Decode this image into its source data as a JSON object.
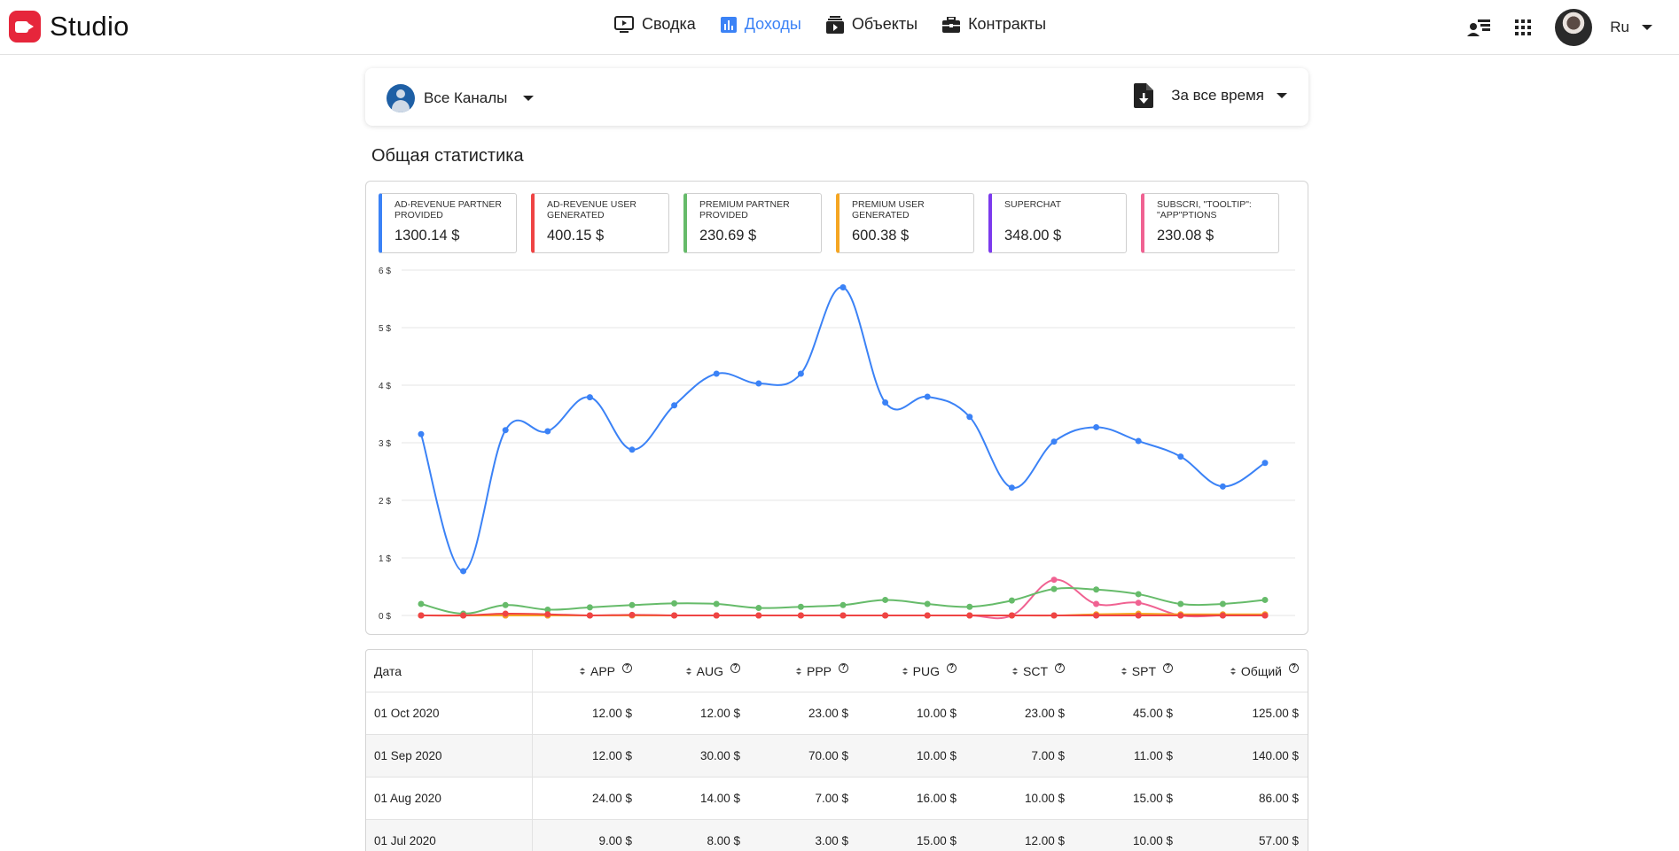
{
  "header": {
    "logo_text": "Studio",
    "nav": [
      {
        "label": "Сводка",
        "icon": "tv-play-icon",
        "active": false
      },
      {
        "label": "Доходы",
        "icon": "bar-chart-icon",
        "active": true
      },
      {
        "label": "Объекты",
        "icon": "media-stack-icon",
        "active": false
      },
      {
        "label": "Контракты",
        "icon": "briefcase-icon",
        "active": false
      }
    ],
    "lang": "Ru"
  },
  "filters": {
    "channel": "Все Каналы",
    "period": "За все время"
  },
  "section_title": "Общая статистика",
  "cards": [
    {
      "label": "AD-REVENUE PARTNER PROVIDED",
      "value": "1300.14 $",
      "color": "#3b82f6"
    },
    {
      "label": "AD-REVENUE USER GENERATED",
      "value": "400.15 $",
      "color": "#ef4444"
    },
    {
      "label": "PREMIUM PARTNER PROVIDED",
      "value": "230.69 $",
      "color": "#66bb6a"
    },
    {
      "label": "PREMIUM USER GENERATED",
      "value": "600.38 $",
      "color": "#f5a623"
    },
    {
      "label": "SUPERCHAT",
      "value": "348.00 $",
      "color": "#7c3aed"
    },
    {
      "label": "SUBSCRI, \"TOOLTIP\": \"APP\"PTIONS",
      "value": "230.08 $",
      "color": "#f06292"
    }
  ],
  "chart_data": {
    "type": "line",
    "y_ticks": [
      "0 $",
      "1 $",
      "2 $",
      "3 $",
      "4 $",
      "5 $",
      "6 $"
    ],
    "ylim": [
      0,
      6
    ],
    "grid": true,
    "series": [
      {
        "name": "AD-REVENUE PARTNER PROVIDED",
        "color": "#3b82f6",
        "values": [
          3.15,
          0.77,
          3.22,
          3.2,
          3.79,
          2.88,
          3.65,
          4.2,
          4.03,
          4.2,
          5.7,
          3.7,
          3.8,
          3.45,
          2.22,
          3.02,
          3.27,
          3.03,
          2.76,
          2.24,
          2.65
        ]
      },
      {
        "name": "AD-REVENUE USER GENERATED",
        "color": "#ef4444",
        "values": [
          0.0,
          0.0,
          0.03,
          0.02,
          0.0,
          0.01,
          0.0,
          0.0,
          0.0,
          0.0,
          0.0,
          0.0,
          0.0,
          0.0,
          0.0,
          0.0,
          0.0,
          0.0,
          0.0,
          0.0,
          0.0
        ]
      },
      {
        "name": "PREMIUM PARTNER PROVIDED",
        "color": "#66bb6a",
        "values": [
          0.2,
          0.03,
          0.18,
          0.1,
          0.14,
          0.18,
          0.21,
          0.2,
          0.13,
          0.15,
          0.18,
          0.27,
          0.2,
          0.15,
          0.26,
          0.46,
          0.45,
          0.37,
          0.2,
          0.2,
          0.27
        ]
      },
      {
        "name": "PREMIUM USER GENERATED",
        "color": "#f5a623",
        "values": [
          0.0,
          0.0,
          0.0,
          0.0,
          0.0,
          0.0,
          0.0,
          0.0,
          0.0,
          0.0,
          0.0,
          0.0,
          0.0,
          0.0,
          0.0,
          0.0,
          0.02,
          0.03,
          0.02,
          0.02,
          0.02
        ]
      },
      {
        "name": "SUPERCHAT",
        "color": "#7c3aed",
        "values": [
          0.0,
          0.0,
          0.0,
          0.0,
          0.0,
          0.0,
          0.0,
          0.0,
          0.0,
          0.0,
          0.0,
          0.0,
          0.0,
          0.0,
          0.0,
          0.0,
          0.0,
          0.0,
          0.0,
          0.0,
          0.0
        ]
      },
      {
        "name": "SUBSCRI, \"TOOLTIP\": \"APP\"PTIONS",
        "color": "#f06292",
        "values": [
          0.0,
          0.0,
          0.0,
          0.0,
          0.0,
          0.0,
          0.0,
          0.0,
          0.0,
          0.0,
          0.0,
          0.0,
          0.0,
          0.0,
          0.0,
          0.62,
          0.2,
          0.22,
          0.0,
          0.0,
          0.0
        ]
      }
    ]
  },
  "table": {
    "headers": [
      "Дата",
      "APP",
      "AUG",
      "PPP",
      "PUG",
      "SCT",
      "SPT",
      "Общий"
    ],
    "rows": [
      [
        "01 Oct 2020",
        "12.00 $",
        "12.00 $",
        "23.00 $",
        "10.00 $",
        "23.00 $",
        "45.00 $",
        "125.00 $"
      ],
      [
        "01 Sep 2020",
        "12.00 $",
        "30.00 $",
        "70.00 $",
        "10.00 $",
        "7.00 $",
        "11.00 $",
        "140.00 $"
      ],
      [
        "01 Aug 2020",
        "24.00 $",
        "14.00 $",
        "7.00 $",
        "16.00 $",
        "10.00 $",
        "15.00 $",
        "86.00 $"
      ],
      [
        "01 Jul 2020",
        "9.00 $",
        "8.00 $",
        "3.00 $",
        "15.00 $",
        "12.00 $",
        "10.00 $",
        "57.00 $"
      ]
    ]
  }
}
